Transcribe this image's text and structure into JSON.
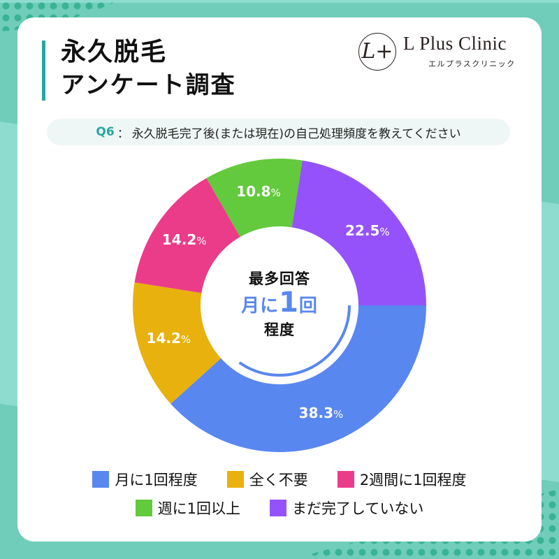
{
  "header": {
    "title_line1": "永久脱毛",
    "title_line2": "アンケート調査"
  },
  "logo": {
    "mark": "L+",
    "name": "L Plus Clinic",
    "kana": "エルプラスクリニック"
  },
  "question": {
    "number": "Q6",
    "separator": "：",
    "text": "永久脱毛完了後(または現在)の自己処理頻度を教えてください"
  },
  "center": {
    "top": "最多回答",
    "mid_prefix": "月に",
    "mid_number": "1",
    "mid_suffix": "回",
    "bottom": "程度"
  },
  "colors": {
    "accent_teal": "#27a79e",
    "bg_teal": "#6fcdb9",
    "bg_teal_light": "#8ddccf",
    "dot_teal": "#2fae8d"
  },
  "chart_data": {
    "type": "pie",
    "variant": "donut",
    "title": "Q6：永久脱毛完了後(または現在)の自己処理頻度を教えてください",
    "start_angle_deg": 0,
    "direction": "clockwise",
    "categories": [
      "月に1回程度",
      "全く不要",
      "2週間に1回程度",
      "週に1回以上",
      "まだ完了していない"
    ],
    "values": [
      38.3,
      14.2,
      14.2,
      10.8,
      22.5
    ],
    "labels": [
      "38.3",
      "14.2",
      "14.2",
      "10.8",
      "22.5"
    ],
    "unit": "%",
    "colors": [
      "#5887f0",
      "#e8b10e",
      "#eb3c89",
      "#63c93d",
      "#9552fb"
    ],
    "legend_position": "bottom",
    "center_annotation": "最多回答 月に1回程度"
  },
  "legend": {
    "rows": [
      [
        {
          "label": "月に1回程度",
          "color": "#5887f0"
        },
        {
          "label": "全く不要",
          "color": "#e8b10e"
        },
        {
          "label": "2週間に1回程度",
          "color": "#eb3c89"
        }
      ],
      [
        {
          "label": "週に1回以上",
          "color": "#63c93d"
        },
        {
          "label": "まだ完了していない",
          "color": "#9552fb"
        }
      ]
    ]
  }
}
